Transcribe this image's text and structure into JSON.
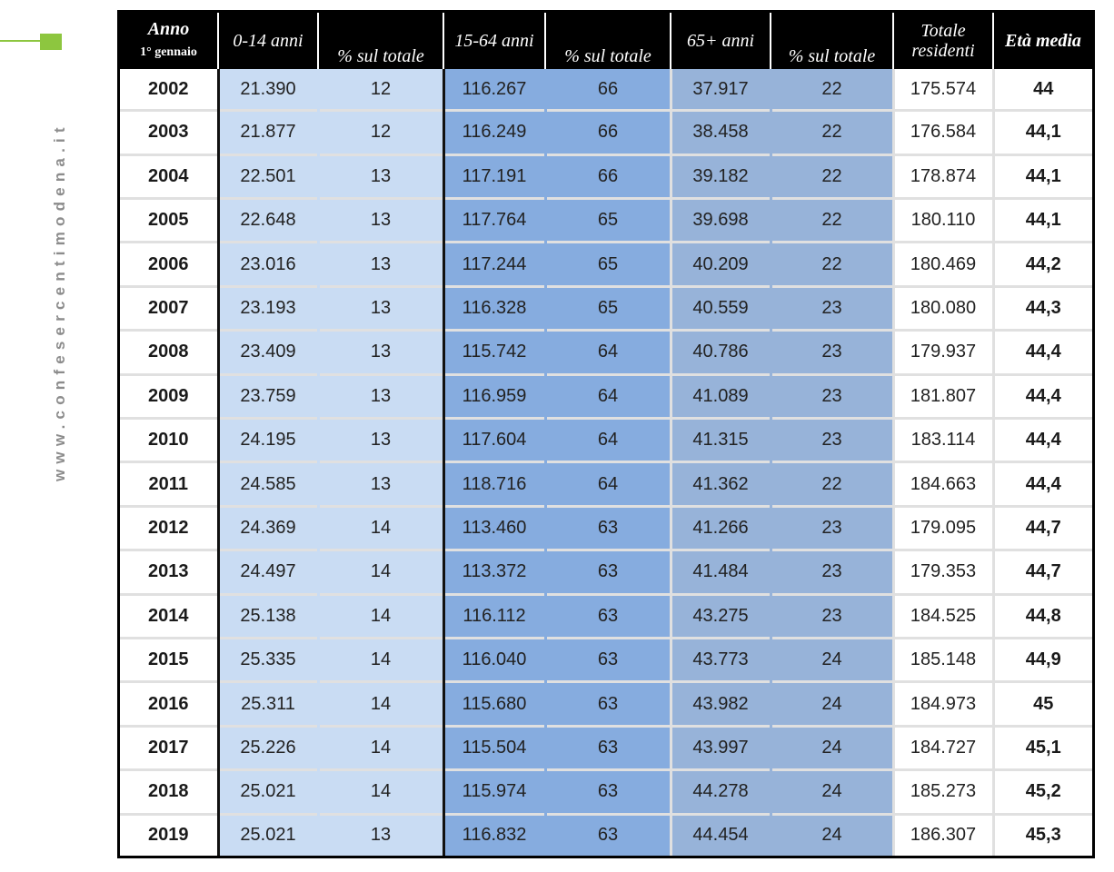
{
  "sidebar": {
    "site": "www.confesercentimodena.it"
  },
  "table": {
    "headers": {
      "anno": "Anno",
      "anno_sub": "1° gennaio",
      "age_0_14": "0-14 anni",
      "pct1": "% sul totale",
      "age_15_64": "15-64 anni",
      "pct2": "% sul totale",
      "age_65": "65+ anni",
      "pct3": "% sul totale",
      "totale": "Totale residenti",
      "eta": "Età media"
    },
    "rows": [
      [
        "2002",
        "21.390",
        "12",
        "116.267",
        "66",
        "37.917",
        "22",
        "175.574",
        "44"
      ],
      [
        "2003",
        "21.877",
        "12",
        "116.249",
        "66",
        "38.458",
        "22",
        "176.584",
        "44,1"
      ],
      [
        "2004",
        "22.501",
        "13",
        "117.191",
        "66",
        "39.182",
        "22",
        "178.874",
        "44,1"
      ],
      [
        "2005",
        "22.648",
        "13",
        "117.764",
        "65",
        "39.698",
        "22",
        "180.110",
        "44,1"
      ],
      [
        "2006",
        "23.016",
        "13",
        "117.244",
        "65",
        "40.209",
        "22",
        "180.469",
        "44,2"
      ],
      [
        "2007",
        "23.193",
        "13",
        "116.328",
        "65",
        "40.559",
        "23",
        "180.080",
        "44,3"
      ],
      [
        "2008",
        "23.409",
        "13",
        "115.742",
        "64",
        "40.786",
        "23",
        "179.937",
        "44,4"
      ],
      [
        "2009",
        "23.759",
        "13",
        "116.959",
        "64",
        "41.089",
        "23",
        "181.807",
        "44,4"
      ],
      [
        "2010",
        "24.195",
        "13",
        "117.604",
        "64",
        "41.315",
        "23",
        "183.114",
        "44,4"
      ],
      [
        "2011",
        "24.585",
        "13",
        "118.716",
        "64",
        "41.362",
        "22",
        "184.663",
        "44,4"
      ],
      [
        "2012",
        "24.369",
        "14",
        "113.460",
        "63",
        "41.266",
        "23",
        "179.095",
        "44,7"
      ],
      [
        "2013",
        "24.497",
        "14",
        "113.372",
        "63",
        "41.484",
        "23",
        "179.353",
        "44,7"
      ],
      [
        "2014",
        "25.138",
        "14",
        "116.112",
        "63",
        "43.275",
        "23",
        "184.525",
        "44,8"
      ],
      [
        "2015",
        "25.335",
        "14",
        "116.040",
        "63",
        "43.773",
        "24",
        "185.148",
        "44,9"
      ],
      [
        "2016",
        "25.311",
        "14",
        "115.680",
        "63",
        "43.982",
        "24",
        "184.973",
        "45"
      ],
      [
        "2017",
        "25.226",
        "14",
        "115.504",
        "63",
        "43.997",
        "24",
        "184.727",
        "45,1"
      ],
      [
        "2018",
        "25.021",
        "14",
        "115.974",
        "63",
        "44.278",
        "24",
        "185.273",
        "45,2"
      ],
      [
        "2019",
        "25.021",
        "13",
        "116.832",
        "63",
        "44.454",
        "24",
        "186.307",
        "45,3"
      ]
    ]
  }
}
